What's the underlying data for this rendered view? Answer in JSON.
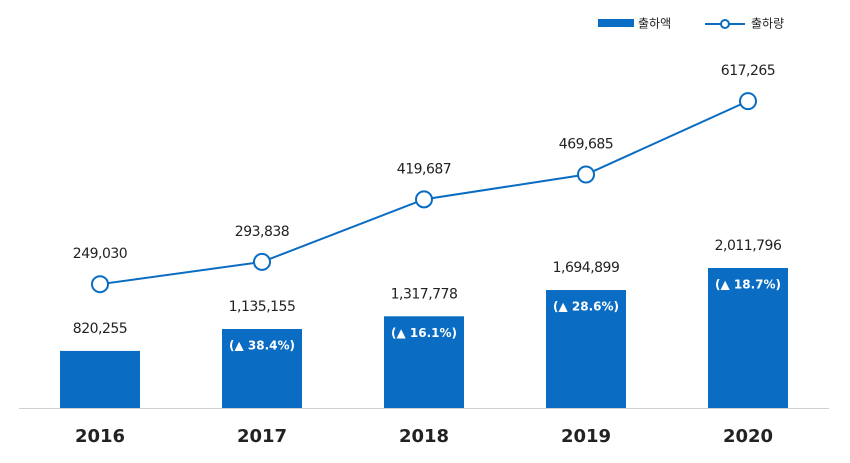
{
  "chart_data": {
    "type": "combo",
    "categories": [
      "2016",
      "2017",
      "2018",
      "2019",
      "2020"
    ],
    "series": [
      {
        "name": "출하액",
        "type": "bar",
        "color": "#0a6cc2",
        "values": [
          820255,
          1135155,
          1317778,
          1694899,
          2011796
        ],
        "value_labels": [
          "820,255",
          "1,135,155",
          "1,317,778",
          "1,694,899",
          "2,011,796"
        ],
        "growth_labels": [
          null,
          "(▲ 38.4%)",
          "(▲ 16.1%)",
          "(▲ 28.6%)",
          "(▲ 18.7%)"
        ]
      },
      {
        "name": "출하량",
        "type": "line",
        "axis": "y2",
        "color": "#0a6cc2",
        "values": [
          249030,
          293838,
          419687,
          469685,
          617265
        ],
        "value_labels": [
          "249,030",
          "293,838",
          "419,687",
          "469,685",
          "617,265"
        ]
      }
    ],
    "ylim": [
      0,
      5000000
    ],
    "y2lim": [
      0,
      700000
    ],
    "legend": "top-right"
  }
}
